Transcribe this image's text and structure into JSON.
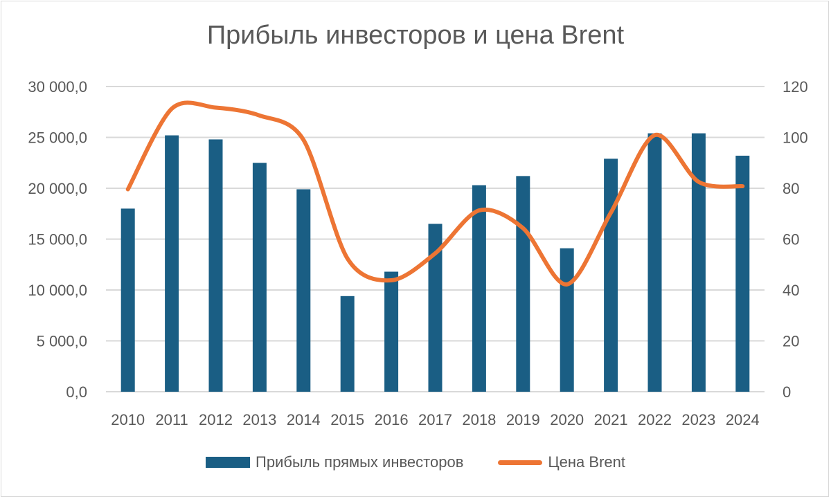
{
  "chart_data": {
    "type": "bar",
    "title": "Прибыль инвесторов  и цена Brent",
    "categories": [
      "2010",
      "2011",
      "2012",
      "2013",
      "2014",
      "2015",
      "2016",
      "2017",
      "2018",
      "2019",
      "2020",
      "2021",
      "2022",
      "2023",
      "2024"
    ],
    "series": [
      {
        "name": "Прибыль прямых инвесторов",
        "type": "bar",
        "axis": "left",
        "color": "#1a5e84",
        "values": [
          18000,
          25200,
          24800,
          22500,
          19900,
          9400,
          11800,
          16500,
          20300,
          21200,
          14100,
          22900,
          25400,
          25400,
          23200
        ]
      },
      {
        "name": "Цена Brent",
        "type": "line",
        "axis": "right",
        "color": "#ed7534",
        "values": [
          79.6,
          111.3,
          111.7,
          108.6,
          99.0,
          52.4,
          43.8,
          54.4,
          71.3,
          64.3,
          42.2,
          70.4,
          100.9,
          82.5,
          80.8
        ]
      }
    ],
    "y_left": {
      "ylim": [
        0,
        30000
      ],
      "ticks": [
        "0,0",
        "5 000,0",
        "10 000,0",
        "15 000,0",
        "20 000,0",
        "25 000,0",
        "30 000,0"
      ]
    },
    "y_right": {
      "ylim": [
        0,
        120
      ],
      "ticks": [
        "0",
        "20",
        "40",
        "60",
        "80",
        "100",
        "120"
      ]
    },
    "xlabel": "",
    "ylabel": "",
    "grid": true,
    "legend_position": "bottom"
  }
}
